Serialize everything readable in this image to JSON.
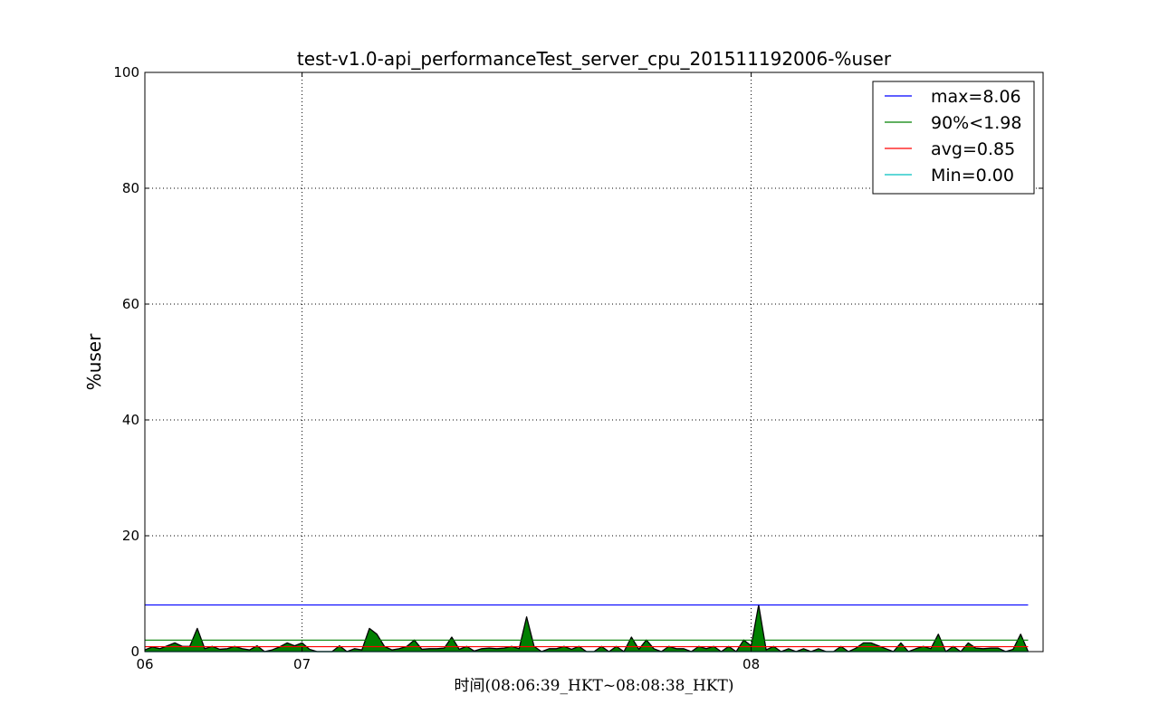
{
  "chart_data": {
    "type": "area",
    "title": "test-v1.0-api_performanceTest_server_cpu_201511192006-%user",
    "ylabel": "%user",
    "xlabel": "时间(08:06:39_HKT~08:08:38_HKT)",
    "ylim": [
      0,
      100
    ],
    "yticks": [
      0,
      20,
      40,
      60,
      80,
      100
    ],
    "xlim_seconds": [
      0,
      120
    ],
    "xticks": [
      {
        "seconds": 0,
        "label": "06"
      },
      {
        "seconds": 21,
        "label": "07"
      },
      {
        "seconds": 81,
        "label": "08"
      }
    ],
    "grid": true,
    "legend_position": "top-right",
    "fill_color": "#008000",
    "series": [
      {
        "sample_interval_seconds": 1,
        "values": [
          0.3,
          0.8,
          0.5,
          1.0,
          1.5,
          0.9,
          0.9,
          4.0,
          0.5,
          0.9,
          0.4,
          0.5,
          0.9,
          0.5,
          0.3,
          1.0,
          0.0,
          0.3,
          0.8,
          1.5,
          1.0,
          1.5,
          0.4,
          0.0,
          0.0,
          0.0,
          1.0,
          0.0,
          0.5,
          0.3,
          4.0,
          3.0,
          0.9,
          0.3,
          0.5,
          0.9,
          2.0,
          0.4,
          0.5,
          0.5,
          0.6,
          2.5,
          0.4,
          0.9,
          0.1,
          0.5,
          0.6,
          0.5,
          0.6,
          0.9,
          0.5,
          6.0,
          0.9,
          0.0,
          0.5,
          0.5,
          0.9,
          0.4,
          0.9,
          0.0,
          0.0,
          0.9,
          0.0,
          0.9,
          0.0,
          2.5,
          0.4,
          2.0,
          0.5,
          0.0,
          0.9,
          0.5,
          0.5,
          0.0,
          0.9,
          0.5,
          0.9,
          0.0,
          0.9,
          0.0,
          2.0,
          1.0,
          8.06,
          0.3,
          0.9,
          0.0,
          0.5,
          0.0,
          0.5,
          0.0,
          0.5,
          0.0,
          0.0,
          0.9,
          0.0,
          0.6,
          1.5,
          1.5,
          1.0,
          0.5,
          0.0,
          1.5,
          0.0,
          0.5,
          0.9,
          0.5,
          3.0,
          0.0,
          0.9,
          0.0,
          1.5,
          0.6,
          0.5,
          0.6,
          0.6,
          0.0,
          0.4,
          3.0,
          0.0
        ]
      }
    ],
    "reference_lines": [
      {
        "label": "max=8.06",
        "value": 8.06,
        "color": "#0000ff"
      },
      {
        "label": "90%<1.98",
        "value": 1.98,
        "color": "#008000"
      },
      {
        "label": "avg=0.85",
        "value": 0.85,
        "color": "#ff0000"
      },
      {
        "label": "Min=0.00",
        "value": 0.0,
        "color": "#00bfbf"
      }
    ]
  }
}
